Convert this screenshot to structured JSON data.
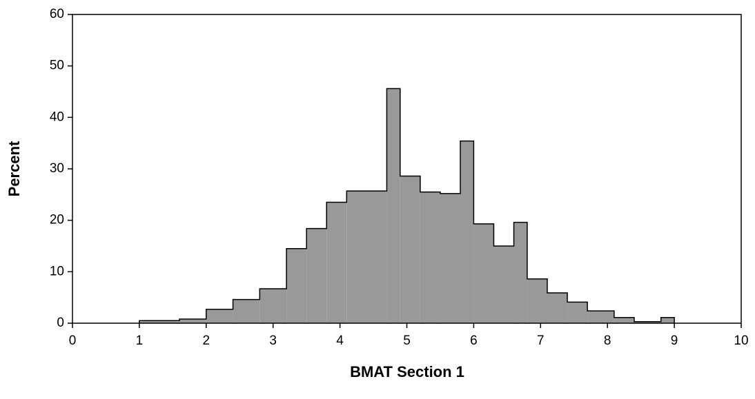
{
  "chart_data": {
    "type": "histogram",
    "x_label": "BMAT Section 1",
    "y_label": "Percent",
    "bins": [
      1,
      1.6,
      2.0,
      2.4,
      2.8,
      3.2,
      3.5,
      3.8,
      4.1,
      4.7,
      4.9,
      5.2,
      5.5,
      5.8,
      6.0,
      6.3,
      6.6,
      6.8,
      7.1,
      7.4,
      7.7,
      8.1,
      8.4,
      8.8,
      9.0
    ],
    "values": [
      0.5,
      0.8,
      2.7,
      4.6,
      6.7,
      14.5,
      18.4,
      23.5,
      25.7,
      45.6,
      28.6,
      25.5,
      25.2,
      35.4,
      19.3,
      15,
      19.6,
      8.6,
      5.9,
      4.1,
      2.4,
      1.1,
      0.3,
      1.1
    ],
    "color": "#999999",
    "xlim": [
      0,
      10
    ],
    "xticks": [
      0,
      1,
      2,
      3,
      4,
      5,
      6,
      7,
      8,
      9,
      10
    ],
    "ylim": [
      0,
      60
    ],
    "yticks": [
      0,
      10,
      20,
      30,
      40,
      50,
      60
    ]
  }
}
